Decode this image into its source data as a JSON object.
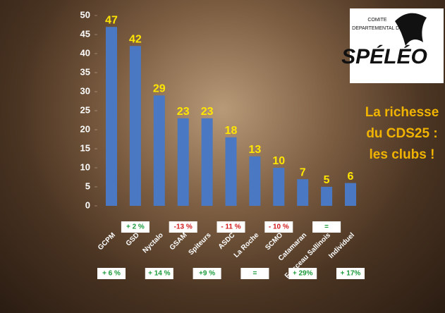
{
  "chart_data": {
    "type": "bar",
    "title": "La richesse du CDS25 : les clubs !",
    "categories": [
      "GCPM",
      "GSD",
      "Nyctalo",
      "GSAM",
      "Spiteurs",
      "ASDC",
      "La Roche",
      "SCMO",
      "Catamaran",
      "Falsceau Sallinois",
      "Individuel"
    ],
    "values": [
      47,
      42,
      29,
      23,
      23,
      18,
      13,
      10,
      7,
      5,
      6
    ],
    "changes": [
      "+ 6 %",
      "+ 2 %",
      "+ 14 %",
      "-13 %",
      "+9 %",
      "- 11 %",
      "=",
      "- 10 %",
      "+ 29%",
      "=",
      "+ 17%"
    ],
    "color": "#4a78c2",
    "ylim": [
      0,
      50
    ],
    "yticks": [
      0,
      5,
      10,
      15,
      20,
      25,
      30,
      35,
      40,
      45,
      50
    ]
  },
  "logo": {
    "line1": "COMITE",
    "line2": "DEPARTEMENTAL DE",
    "line3": "SPÉLÉO"
  }
}
